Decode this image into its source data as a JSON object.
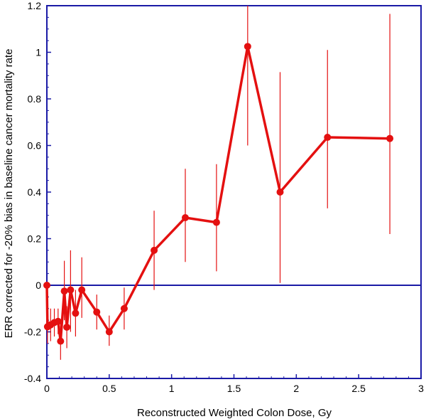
{
  "chart_data": {
    "type": "line",
    "title": "",
    "xlabel": "Reconstructed Weighted Colon Dose, Gy",
    "ylabel": "ERR corrected for -20% bias in baseline cancer mortality rate",
    "xlim": [
      0,
      3
    ],
    "ylim": [
      -0.4,
      1.2
    ],
    "x_ticks": [
      0,
      0.5,
      1,
      1.5,
      2,
      2.5,
      3
    ],
    "y_ticks": [
      -0.4,
      -0.2,
      0,
      0.2,
      0.4,
      0.6,
      0.8,
      1,
      1.2
    ],
    "x_tick_labels": [
      "0",
      "0.5",
      "1",
      "1.5",
      "2",
      "2.5",
      "3"
    ],
    "y_tick_labels": [
      "-0.4",
      "-0.2",
      "0",
      "0.2",
      "0.4",
      "0.6",
      "0.8",
      "1",
      "1.2"
    ],
    "reference_line_y": 0,
    "grid": false,
    "legend": "none",
    "colors": {
      "series": "#e41010",
      "axes": "#1a1aa6",
      "reference": "#1a1aa6"
    },
    "series": [
      {
        "points": [
          {
            "x": 0.0,
            "y": 0.0,
            "lo": 0.0,
            "hi": 0.0
          },
          {
            "x": 0.005,
            "y": -0.178,
            "lo": -0.25,
            "hi": -0.11
          },
          {
            "x": 0.03,
            "y": -0.17,
            "lo": -0.24,
            "hi": -0.1
          },
          {
            "x": 0.06,
            "y": -0.16,
            "lo": -0.22,
            "hi": -0.1
          },
          {
            "x": 0.09,
            "y": -0.155,
            "lo": -0.21,
            "hi": -0.1
          },
          {
            "x": 0.11,
            "y": -0.24,
            "lo": -0.32,
            "hi": -0.16
          },
          {
            "x": 0.14,
            "y": -0.025,
            "lo": -0.15,
            "hi": 0.105
          },
          {
            "x": 0.16,
            "y": -0.18,
            "lo": -0.27,
            "hi": -0.09
          },
          {
            "x": 0.19,
            "y": -0.02,
            "lo": -0.2,
            "hi": 0.15
          },
          {
            "x": 0.23,
            "y": -0.12,
            "lo": -0.22,
            "hi": -0.02
          },
          {
            "x": 0.28,
            "y": -0.02,
            "lo": -0.14,
            "hi": 0.12
          },
          {
            "x": 0.4,
            "y": -0.115,
            "lo": -0.19,
            "hi": -0.04
          },
          {
            "x": 0.5,
            "y": -0.2,
            "lo": -0.26,
            "hi": -0.13
          },
          {
            "x": 0.62,
            "y": -0.1,
            "lo": -0.19,
            "hi": -0.01
          },
          {
            "x": 0.86,
            "y": 0.15,
            "lo": -0.02,
            "hi": 0.32
          },
          {
            "x": 1.11,
            "y": 0.29,
            "lo": 0.1,
            "hi": 0.5
          },
          {
            "x": 1.36,
            "y": 0.27,
            "lo": 0.06,
            "hi": 0.52
          },
          {
            "x": 1.61,
            "y": 1.025,
            "lo": 0.6,
            "hi": 1.2
          },
          {
            "x": 1.87,
            "y": 0.4,
            "lo": 0.01,
            "hi": 0.915
          },
          {
            "x": 2.25,
            "y": 0.635,
            "lo": 0.33,
            "hi": 1.01
          },
          {
            "x": 2.75,
            "y": 0.63,
            "lo": 0.22,
            "hi": 1.165
          }
        ]
      }
    ]
  }
}
